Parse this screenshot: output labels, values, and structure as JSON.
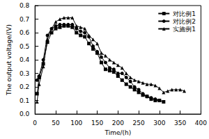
{
  "chart_data": {
    "type": "line",
    "x_label": "Time/(h)",
    "y_label": "The output voltage/(V)",
    "xlim": [
      0,
      400
    ],
    "xticks": [
      0,
      50,
      100,
      150,
      200,
      250,
      300,
      350,
      400
    ],
    "ylim": [
      0,
      0.8
    ],
    "yticks": [
      {
        "value": 0,
        "label": "0.0"
      },
      0.1,
      0.2,
      0.3,
      0.4,
      0.5,
      0.6,
      0.7,
      0.8
    ],
    "grid": false,
    "legend": "upper right",
    "series": [
      {
        "name": "对比例1",
        "color": "#000000",
        "marker": "square",
        "x": [
          5,
          10,
          20,
          30,
          40,
          50,
          60,
          70,
          80,
          90,
          100,
          110,
          120,
          130,
          140,
          150,
          160,
          170,
          180,
          190,
          200,
          210,
          220,
          230,
          240,
          250,
          260,
          270,
          280,
          290,
          300,
          310
        ],
        "values": [
          0.15,
          0.27,
          0.37,
          0.53,
          0.6,
          0.63,
          0.64,
          0.65,
          0.65,
          0.64,
          0.6,
          0.58,
          0.57,
          0.52,
          0.48,
          0.45,
          0.38,
          0.33,
          0.32,
          0.31,
          0.28,
          0.25,
          0.22,
          0.2,
          0.18,
          0.16,
          0.14,
          0.13,
          0.11,
          0.1,
          0.1,
          0.09
        ]
      },
      {
        "name": "对比例2",
        "color": "#000000",
        "marker": "circle",
        "x": [
          5,
          10,
          20,
          30,
          40,
          50,
          60,
          70,
          80,
          90,
          100,
          110,
          120,
          130,
          140,
          150,
          160,
          170,
          180,
          190,
          200,
          210,
          220,
          230,
          240,
          250,
          260,
          270,
          280,
          290,
          300
        ],
        "values": [
          0.25,
          0.28,
          0.4,
          0.58,
          0.63,
          0.65,
          0.66,
          0.66,
          0.66,
          0.66,
          0.63,
          0.61,
          0.6,
          0.57,
          0.5,
          0.46,
          0.42,
          0.38,
          0.34,
          0.33,
          0.3,
          0.3,
          0.27,
          0.24,
          0.2,
          0.18,
          0.15,
          0.13,
          0.12,
          0.11,
          0.1
        ]
      },
      {
        "name": "实施例1",
        "color": "#000000",
        "marker": "triangle",
        "x": [
          5,
          10,
          20,
          30,
          40,
          50,
          60,
          70,
          80,
          90,
          100,
          110,
          120,
          130,
          140,
          150,
          160,
          170,
          180,
          190,
          200,
          210,
          220,
          230,
          240,
          250,
          260,
          270,
          280,
          290,
          300,
          310,
          320,
          330,
          340,
          350,
          360
        ],
        "values": [
          0.09,
          0.22,
          0.35,
          0.55,
          0.63,
          0.68,
          0.7,
          0.71,
          0.71,
          0.71,
          0.65,
          0.64,
          0.63,
          0.58,
          0.55,
          0.52,
          0.45,
          0.43,
          0.4,
          0.38,
          0.36,
          0.34,
          0.3,
          0.27,
          0.25,
          0.24,
          0.23,
          0.22,
          0.22,
          0.21,
          0.19,
          0.16,
          0.17,
          0.18,
          0.18,
          0.18,
          0.17
        ]
      }
    ]
  }
}
